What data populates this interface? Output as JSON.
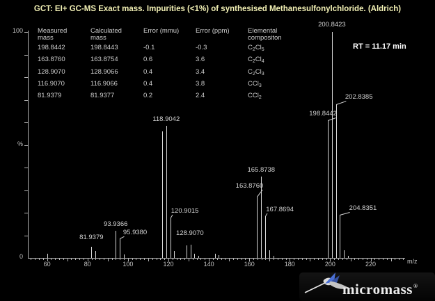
{
  "header": {
    "title": "GCT: EI+ GC-MS Exact mass. Impurities (<1%) of synthesised Methanesulfonylchloride. (Aldrich)",
    "rt_label": "RT = 11.17 min"
  },
  "table": {
    "headers": [
      "Measured\nmass",
      "Calculated\nmass",
      "Error (mmu)",
      "Error (ppm)",
      "Elemental\ncompositon"
    ],
    "rows": [
      {
        "measured": "198.8442",
        "calculated": "198.8443",
        "error_mmu": "-0.1",
        "error_ppm": "-0.3",
        "formula": "C2Cl5"
      },
      {
        "measured": "163.8760",
        "calculated": "163.8754",
        "error_mmu": "0.6",
        "error_ppm": "3.6",
        "formula": "C2Cl4"
      },
      {
        "measured": "128.9070",
        "calculated": "128.9066",
        "error_mmu": "0.4",
        "error_ppm": "3.4",
        "formula": "C2Cl3"
      },
      {
        "measured": "116.9070",
        "calculated": "116.9066",
        "error_mmu": "0.4",
        "error_ppm": "3.8",
        "formula": "CCl3"
      },
      {
        "measured": "81.9379",
        "calculated": "81.9377",
        "error_mmu": "0.2",
        "error_ppm": "2.4",
        "formula": "CCl2"
      }
    ]
  },
  "chart_data": {
    "type": "bar",
    "subtype": "mass-spectrum",
    "title": "GCT: EI+ GC-MS Exact mass. Impurities (<1%) of synthesised Methanesulfonylchloride. (Aldrich)",
    "xlabel": "m/z",
    "ylabel": "%",
    "xlim": [
      50.5,
      237
    ],
    "ylim": [
      0,
      100
    ],
    "x_tick_labels": [
      60,
      80,
      100,
      120,
      140,
      160,
      180,
      200,
      220
    ],
    "y_tick_labels": [
      "100",
      "%",
      "0"
    ],
    "grid": "off",
    "peaks": [
      {
        "mz": 59.97,
        "pct": 2
      },
      {
        "mz": 81.9379,
        "pct": 5,
        "label": "81.9379",
        "gap": 8
      },
      {
        "mz": 83.935,
        "pct": 3
      },
      {
        "mz": 93.9366,
        "pct": 12,
        "label": "93.9366",
        "gap": 4
      },
      {
        "mz": 95.938,
        "pct": 8.5,
        "label": "95.9380",
        "dx": 22,
        "gap": 3,
        "pointer": true
      },
      {
        "mz": 97.934,
        "pct": 1.5
      },
      {
        "mz": 116.907,
        "pct": 56
      },
      {
        "mz": 118.9042,
        "pct": 58.5,
        "label": "118.9042",
        "gap": 4
      },
      {
        "mz": 120.9015,
        "pct": 18,
        "label": "120.9015",
        "dx": 21,
        "gap": 4,
        "pointer": true
      },
      {
        "mz": 122.899,
        "pct": 3
      },
      {
        "mz": 128.907,
        "pct": 5.5,
        "label": "128.9070",
        "dx": 5,
        "gap": 12
      },
      {
        "mz": 130.904,
        "pct": 6
      },
      {
        "mz": 132.901,
        "pct": 2
      },
      {
        "mz": 134.898,
        "pct": 1
      },
      {
        "mz": 142.9,
        "pct": 2
      },
      {
        "mz": 144.9,
        "pct": 1.2
      },
      {
        "mz": 163.876,
        "pct": 27,
        "label": "163.8760",
        "dx": -11,
        "gap": 10,
        "pointer": true
      },
      {
        "mz": 165.8738,
        "pct": 36,
        "label": "165.8738",
        "gap": 4
      },
      {
        "mz": 167.8694,
        "pct": 18.5,
        "label": "167.8694",
        "dx": 21,
        "gap": 4,
        "pointer": true
      },
      {
        "mz": 169.8656,
        "pct": 3.5
      },
      {
        "mz": 171.862,
        "pct": 1
      },
      {
        "mz": 198.8442,
        "pct": 61,
        "label": "198.8442",
        "dx": -7,
        "gap": 4,
        "pointer": true
      },
      {
        "mz": 200.8423,
        "pct": 100,
        "label": "200.8423",
        "gap": 5
      },
      {
        "mz": 202.8385,
        "pct": 68,
        "label": "202.8385",
        "dx": 33,
        "gap": 5,
        "pointer": true
      },
      {
        "mz": 204.8351,
        "pct": 19,
        "label": "204.8351",
        "dx": 33,
        "gap": 4,
        "pointer": true
      },
      {
        "mz": 206.8315,
        "pct": 3.5
      },
      {
        "mz": 208.83,
        "pct": 1
      }
    ]
  },
  "logo": {
    "text": "micromass",
    "registered": "®",
    "icon": "hummingbird-icon"
  },
  "colors": {
    "background": "#000000",
    "title": "#f2f0b4",
    "table_text": "#cfcfcf",
    "peak_line": "#d9d9d9",
    "peak_label": "#d4d4d4",
    "axis": "#b5b5b5",
    "tick_label": "#c4c4c4",
    "rt_text": "#ffffff",
    "logo_text": "#ededed",
    "logo_blue": "#4a6fd4"
  }
}
